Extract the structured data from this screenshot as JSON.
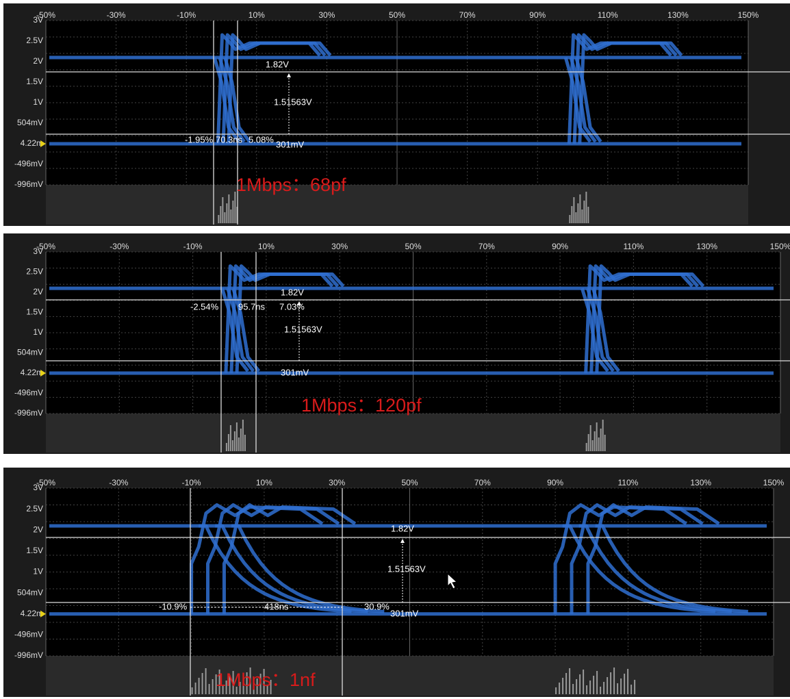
{
  "panels": [
    {
      "x_labels": [
        "-50%",
        "-30%",
        "-10%",
        "10%",
        "30%",
        "50%",
        "70%",
        "90%",
        "110%",
        "130%",
        "150%"
      ],
      "y_labels": [
        "3V",
        "2.5V",
        "2V",
        "1.5V",
        "1V",
        "504mV",
        "4.22m",
        "-496mV",
        "-996mV"
      ],
      "measurements": {
        "high": "1.82V",
        "delta_v": "1.51563V",
        "low": "301mV",
        "t_left": "-1.95%",
        "t_delta": "70.3ns",
        "t_right": "5.08%"
      },
      "caption": "1Mbps：68pf"
    },
    {
      "x_labels": [
        "-50%",
        "-30%",
        "-10%",
        "10%",
        "30%",
        "50%",
        "70%",
        "90%",
        "110%",
        "130%",
        "150%"
      ],
      "y_labels": [
        "3V",
        "2.5V",
        "2V",
        "1.5V",
        "1V",
        "504mV",
        "4.22m",
        "-496mV",
        "-996mV"
      ],
      "measurements": {
        "high": "1.82V",
        "delta_v": "1.51563V",
        "low": "301mV",
        "t_left": "-2.54%",
        "t_delta": "95.7ns",
        "t_right": "7.03%"
      },
      "caption": "1Mbps：120pf"
    },
    {
      "x_labels": [
        "-50%",
        "-30%",
        "-10%",
        "10%",
        "30%",
        "50%",
        "70%",
        "90%",
        "110%",
        "130%",
        "150%"
      ],
      "y_labels": [
        "3V",
        "2.5V",
        "2V",
        "1.5V",
        "1V",
        "504mV",
        "4.22m",
        "-496mV",
        "-996mV"
      ],
      "measurements": {
        "high": "1.82V",
        "delta_v": "1.51563V",
        "low": "301mV",
        "t_left": "-10.9%",
        "t_delta": "418ns",
        "t_right": "30.9%"
      },
      "caption": "1Mbps：1nf"
    }
  ]
}
